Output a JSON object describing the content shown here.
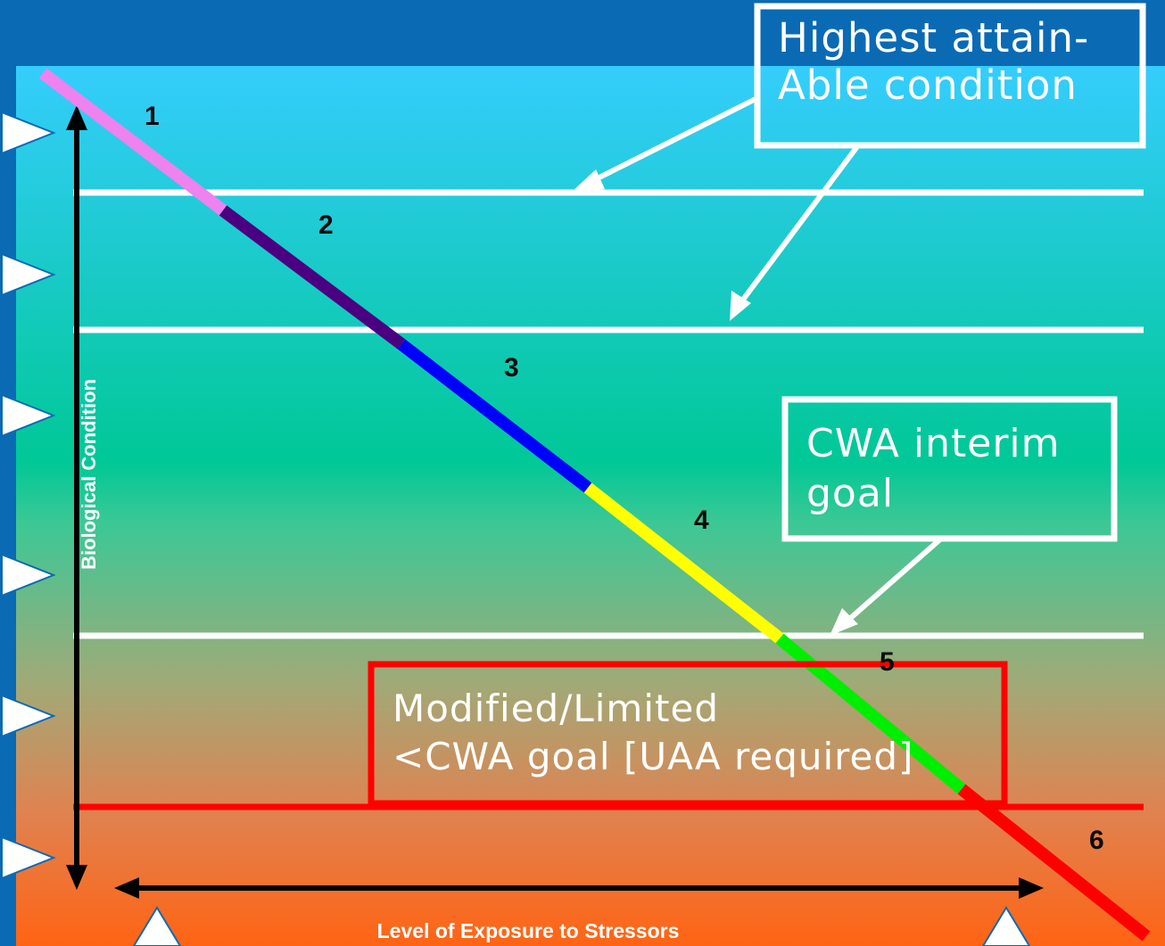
{
  "diagram": {
    "tiers": [
      {
        "label": "1",
        "color": "#ee82ee"
      },
      {
        "label": "2",
        "color": "#4b0082"
      },
      {
        "label": "3",
        "color": "#0000ff"
      },
      {
        "label": "4",
        "color": "#ffff00"
      },
      {
        "label": "5",
        "color": "#00ee00"
      },
      {
        "label": "6",
        "color": "#ff0000"
      }
    ],
    "y_axis_label": "Biological Condition",
    "x_axis_label": "Level of Exposure to Stressors",
    "callouts": {
      "highest": {
        "line1": "Highest attain-",
        "line2": "Able condition",
        "border_color": "#ffffff"
      },
      "cwa": {
        "line1": "CWA interim",
        "line2": "goal",
        "border_color": "#ffffff"
      },
      "modified": {
        "line1": "Modified/Limited",
        "line2": "<CWA goal [UAA required]",
        "border_color": "#ff0000"
      }
    },
    "colors": {
      "background_top": "#35cdfd",
      "background_mid": "#00c896",
      "background_bottom": "#ff6414",
      "frame": "#0a6ab4",
      "threshold_lines": "#ffffff",
      "modified_line": "#ff0000"
    }
  }
}
